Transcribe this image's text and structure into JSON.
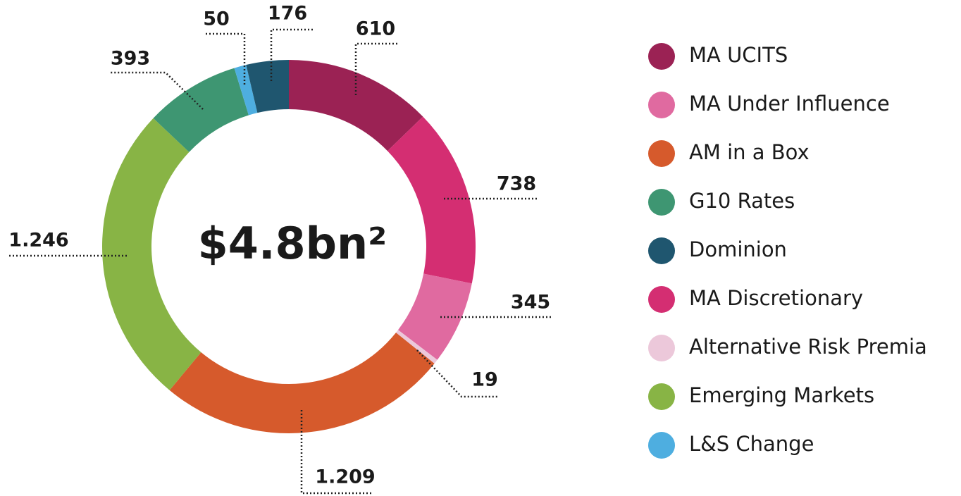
{
  "chart_data": {
    "type": "donut",
    "center_label": "$4.8bn²",
    "categories": [
      "MA UCITS",
      "MA Discretionary",
      "MA Under Influence",
      "Alternative Risk Premia",
      "AM in a Box",
      "Emerging Markets",
      "G10 Rates",
      "L&S Change",
      "Dominion"
    ],
    "values": [
      610,
      738,
      345,
      19,
      1209,
      1246,
      393,
      50,
      176
    ],
    "value_labels": [
      "610",
      "738",
      "345",
      "19",
      "1.209",
      "1.246",
      "393",
      "50",
      "176"
    ],
    "colors": [
      "#9b2254",
      "#d42e72",
      "#e06aa0",
      "#ecc8da",
      "#d65a2c",
      "#88b445",
      "#3e9672",
      "#4eaee0",
      "#1f566f"
    ],
    "legend": "right"
  }
}
